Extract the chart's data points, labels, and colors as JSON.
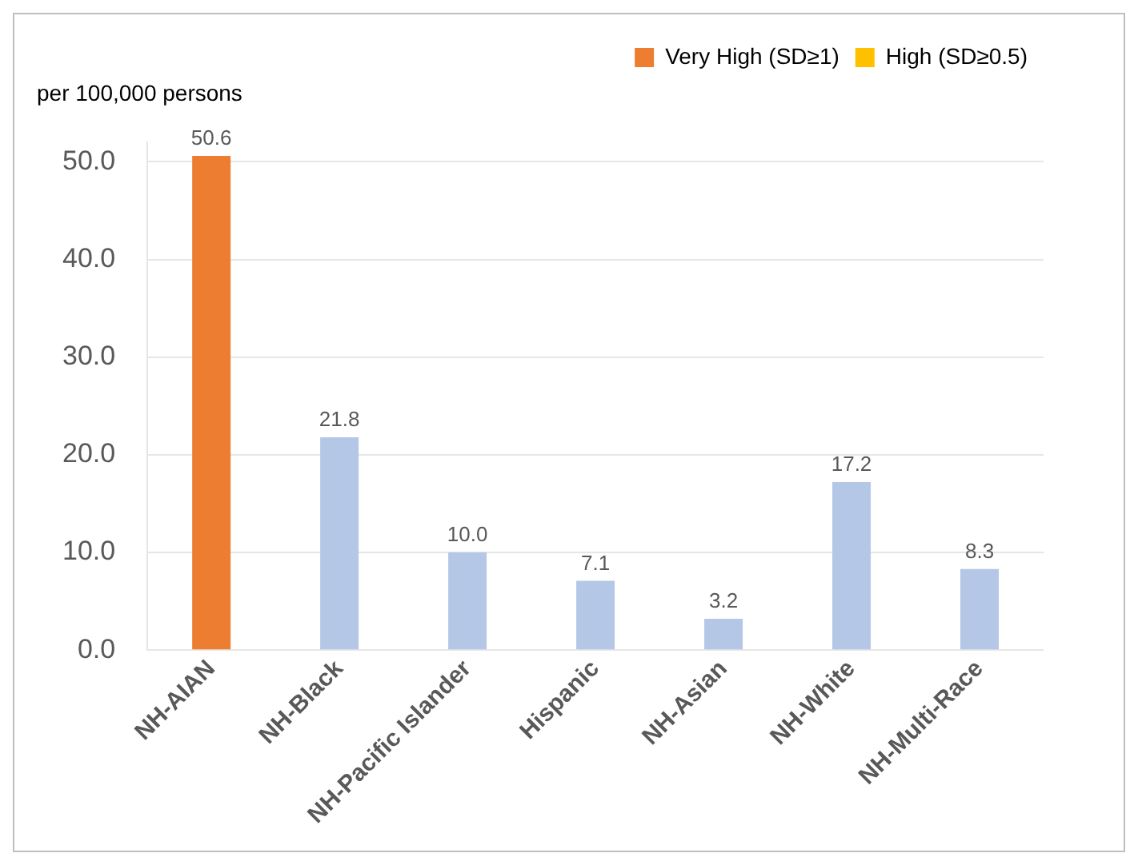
{
  "chart_data": {
    "type": "bar",
    "ylabel": "per 100,000 persons",
    "categories": [
      "NH-AIAN",
      "NH-Black",
      "NH-Pacific Islander",
      "Hispanic",
      "NH-Asian",
      "NH-White",
      "NH-Multi-Race"
    ],
    "series": [
      {
        "name": "Very High (SD≥1)",
        "color": "#ed7d31",
        "values": [
          50.6,
          null,
          null,
          null,
          null,
          null,
          null
        ],
        "value_labels": [
          "50.6",
          null,
          null,
          null,
          null,
          null,
          null
        ]
      },
      {
        "name": "High (SD≥0.5)",
        "color": "#ffc000",
        "values": [
          null,
          null,
          null,
          null,
          null,
          null,
          null
        ]
      },
      {
        "color": "#b4c7e7",
        "values": [
          null,
          21.8,
          10.0,
          7.1,
          3.2,
          17.2,
          8.3
        ],
        "value_labels": [
          null,
          "21.8",
          "10.0",
          "7.1",
          "3.2",
          "17.2",
          "8.3"
        ]
      }
    ],
    "ylim": [
      0,
      52
    ],
    "yticks": [
      {
        "value": 0,
        "label": "0.0"
      },
      {
        "value": 10,
        "label": "10.0"
      },
      {
        "value": 20,
        "label": "20.0"
      },
      {
        "value": 30,
        "label": "30.0"
      },
      {
        "value": 40,
        "label": "40.0"
      },
      {
        "value": 50,
        "label": "50.0"
      }
    ],
    "grid": "y",
    "legend": "top right"
  }
}
